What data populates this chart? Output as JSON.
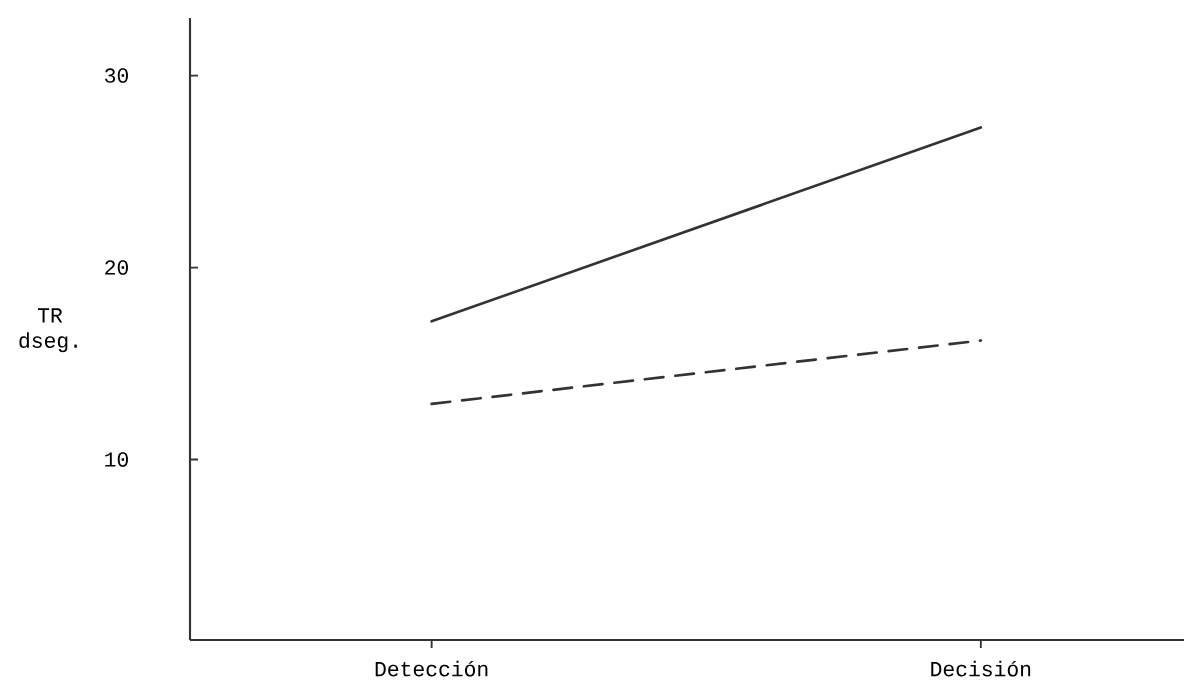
{
  "chart_data": {
    "type": "line",
    "ylabel": "TR dseg.",
    "categories": [
      "Detección",
      "Decisión"
    ],
    "series": [
      {
        "color": "#333333",
        "line_style": "solid",
        "values": [
          17.2,
          27.3
        ]
      },
      {
        "color": "#333333",
        "line_style": "dashed",
        "values": [
          12.9,
          16.2
        ]
      }
    ],
    "ylim": [
      0.6,
      33
    ],
    "yticks": [
      10,
      20,
      30
    ],
    "marker": "none"
  }
}
